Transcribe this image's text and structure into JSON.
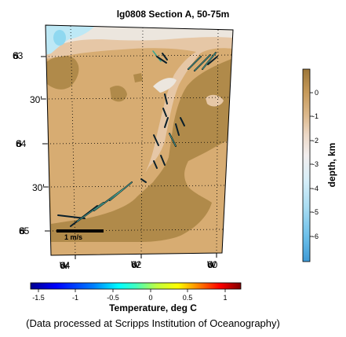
{
  "title": "lg0808 Section A, 50-75m",
  "map": {
    "lat_labels": [
      {
        "text": "63",
        "suffix": "S",
        "major": true
      },
      {
        "text": "30'",
        "suffix": "",
        "major": false
      },
      {
        "text": "64",
        "suffix": "S",
        "major": true
      },
      {
        "text": "30'",
        "suffix": "",
        "major": false
      },
      {
        "text": "65",
        "suffix": "S",
        "major": true
      }
    ],
    "lon_labels": [
      {
        "text": "64",
        "suffix": "W"
      },
      {
        "text": "62",
        "suffix": "W"
      },
      {
        "text": "60",
        "suffix": "W"
      }
    ],
    "scale_label": "1 m/s",
    "colors": {
      "ocean_dark": "#b08a4a",
      "ocean_mid": "#d7ac72",
      "shelf_light": "#e6c7a6",
      "shallow_pale": "#ece6de",
      "coast_blue": "#bde8f5",
      "coast_cyan": "#8fd8f0"
    }
  },
  "depth_colorbar": {
    "label": "depth, km",
    "ticks": [
      "0",
      "-1",
      "-2",
      "-3",
      "-4",
      "-5",
      "-6"
    ]
  },
  "temperature_colorbar": {
    "title": "Temperature, deg C",
    "ticks": [
      "-1.5",
      "-1",
      "-0.5",
      "0",
      "0.5",
      "1"
    ]
  },
  "credit": "(Data processed at Scripps Institution of Oceanography)"
}
